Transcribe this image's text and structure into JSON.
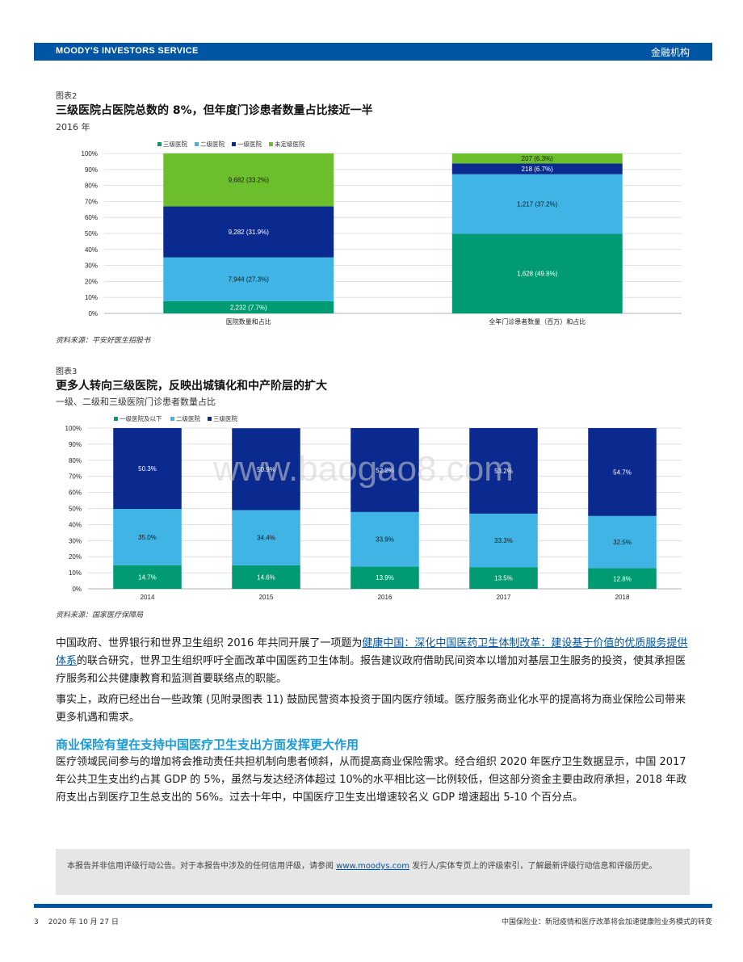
{
  "header": {
    "brand": "MOODY'S INVESTORS SERVICE",
    "section": "金融机构"
  },
  "figure2": {
    "label": "图表2",
    "title": "三级医院占医院总数的 8%，但年度门诊患者数量占比接近一半",
    "subtitle": "2016 年",
    "source": "资料来源：平安好医生招股书"
  },
  "figure3": {
    "label": "图表3",
    "title": "更多人转向三级医院，反映出城镇化和中产阶层的扩大",
    "subtitle": "一级、二级和三级医院门诊患者数量占比",
    "source": "资料来源：国家医疗保障局"
  },
  "watermark": "www.baogao8.com",
  "chart_data": [
    {
      "type": "bar",
      "stacked": true,
      "categories": [
        "医院数量和占比",
        "全年门诊患者数量（百万）和占比"
      ],
      "series": [
        {
          "name": "三级医院",
          "color": "#009a73",
          "values": [
            7.7,
            49.8
          ],
          "labels": [
            "2,232 (7.7%)",
            "1,628 (49.8%)"
          ]
        },
        {
          "name": "二级医院",
          "color": "#3fb4e5",
          "values": [
            27.3,
            37.2
          ],
          "labels": [
            "7,944 (27.3%)",
            "1,217 (37.2%)"
          ]
        },
        {
          "name": "一级医院",
          "color": "#0b2a8f",
          "values": [
            31.9,
            6.7
          ],
          "labels": [
            "9,282 (31.9%)",
            "218 (6.7%)"
          ]
        },
        {
          "name": "未定级医院",
          "color": "#6cbe2d",
          "values": [
            33.2,
            6.3
          ],
          "labels": [
            "9,682 (33.2%)",
            "207 (6.3%)"
          ]
        }
      ],
      "ylim": [
        0,
        100
      ],
      "yticks": [
        "0%",
        "10%",
        "20%",
        "30%",
        "40%",
        "50%",
        "60%",
        "70%",
        "80%",
        "90%",
        "100%"
      ],
      "legend": "top",
      "grid": true
    },
    {
      "type": "bar",
      "stacked": true,
      "categories": [
        "2014",
        "2015",
        "2016",
        "2017",
        "2018"
      ],
      "series": [
        {
          "name": "一级医院及以下",
          "color": "#009a73",
          "values": [
            14.7,
            14.6,
            13.9,
            13.5,
            12.8
          ],
          "labels": [
            "14.7%",
            "14.6%",
            "13.9%",
            "13.5%",
            "12.8%"
          ]
        },
        {
          "name": "二级医院",
          "color": "#3fb4e5",
          "values": [
            35.0,
            34.4,
            33.9,
            33.3,
            32.5
          ],
          "labels": [
            "35.0%",
            "34.4%",
            "33.9%",
            "33.3%",
            "32.5%"
          ]
        },
        {
          "name": "三级医院",
          "color": "#0b2a8f",
          "values": [
            50.3,
            50.9,
            52.2,
            53.2,
            54.7
          ],
          "labels": [
            "50.3%",
            "50.9%",
            "52.2%",
            "53.2%",
            "54.7%"
          ]
        }
      ],
      "ylim": [
        0,
        100
      ],
      "yticks": [
        "0%",
        "10%",
        "20%",
        "30%",
        "40%",
        "50%",
        "60%",
        "70%",
        "80%",
        "90%",
        "100%"
      ],
      "legend": "top",
      "grid": true
    }
  ],
  "body": {
    "p1_before": "中国政府、世界银行和世界卫生组织 2016 年共同开展了一项题为",
    "p1_link": "健康中国：深化中国医药卫生体制改革：建设基于价值的优质服务提供体系",
    "p1_after": "的联合研究，世界卫生组织呼吁全面改革中国医药卫生体制。报告建议政府借助民间资本以增加对基层卫生服务的投资，使其承担医疗服务和公共健康教育和监测首要联络点的职能。",
    "p2": "事实上，政府已经出台一些政策 (见附录图表 11) 鼓励民营资本投资于国内医疗领域。医疗服务商业化水平的提高将为商业保险公司带来更多机遇和需求。",
    "heading": "商业保险有望在支持中国医疗卫生支出方面发挥更大作用",
    "p3": "医疗领域民间参与的增加将会推动责任共担机制向患者倾斜，从而提高商业保险需求。经合组织 2020 年医疗卫生数据显示，中国 2017 年公共卫生支出约占其 GDP 的 5%，虽然与发达经济体超过 10%的水平相比这一比例较低，但这部分资金主要由政府承担，2018 年政府支出占到医疗卫生总支出的 56%。过去十年中，中国医疗卫生支出增速较名义 GDP 增速超出 5-10 个百分点。"
  },
  "disclaimer": {
    "before": "本报告并非信用评级行动公告。对于本报告中涉及的任何信用评级，请参阅 ",
    "link": "www.moodys.com",
    "after": " 发行人/实体专页上的评级索引，了解最新评级行动信息和评级历史。"
  },
  "footer": {
    "page": "3",
    "date": "2020 年 10 月 27 日",
    "title": "中国保险业：新冠疫情和医疗改革将会加速健康险业务模式的转变"
  }
}
